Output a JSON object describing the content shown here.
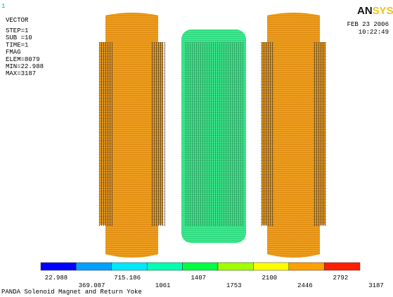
{
  "frame": "1",
  "legend": {
    "lines": [
      "VECTOR",
      "STEP=1",
      "SUB =10",
      "TIME=1",
      "FMAG",
      "ELEM=8079",
      "MIN=22.988",
      "MAX=3187"
    ]
  },
  "logo": {
    "dark": "AN",
    "light": "SYS"
  },
  "date": "FEB 23 2006",
  "time": "10:22:49",
  "colorbar": {
    "labels": [
      "22.988",
      "369.087",
      "715.186",
      "1061",
      "1407",
      "1753",
      "2100",
      "2446",
      "2792",
      "3187"
    ]
  },
  "footer": "PANDA Solenoid Magnet and Return Yoke"
}
